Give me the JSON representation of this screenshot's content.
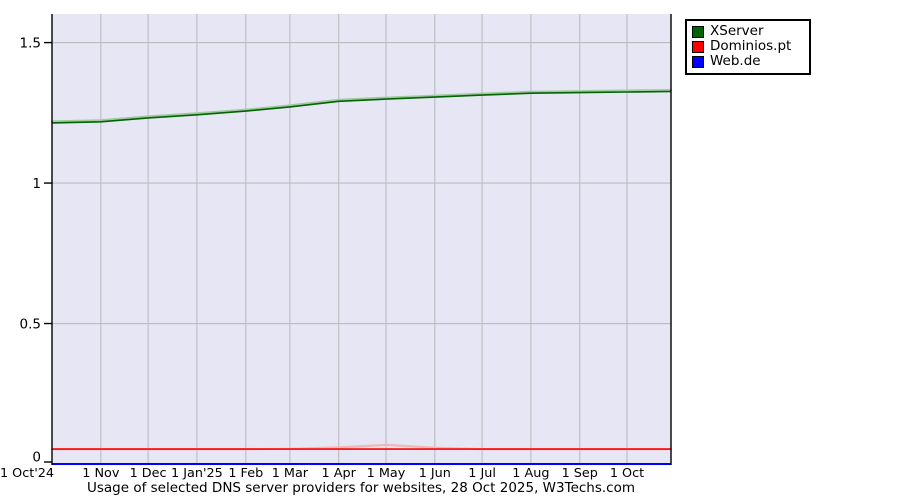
{
  "title": "Usage of selected DNS server providers for websites, 28 Oct 2025, W3Techs.com",
  "legend": {
    "entries": [
      "XServer",
      "Dominios.pt",
      "Web.de"
    ]
  },
  "chart_data": {
    "type": "line",
    "title": "Usage of selected DNS server providers for websites, 28 Oct 2025, W3Techs.com",
    "xlabel": "",
    "ylabel": "",
    "x_tick_labels": [
      "1 Oct'24",
      "1 Nov",
      "1 Dec",
      "1 Jan'25",
      "1 Feb",
      "1 Mar",
      "1 Apr",
      "1 May",
      "1 Jun",
      "1 Jul",
      "1 Aug",
      "1 Sep",
      "1 Oct"
    ],
    "x_tick_days": [
      0,
      31,
      61,
      92,
      123,
      151,
      182,
      212,
      243,
      273,
      304,
      335,
      365
    ],
    "x_range_days": [
      0,
      393
    ],
    "y_tick_labels": [
      "0",
      "0.5",
      "1",
      "1.5"
    ],
    "y_ticks": [
      0,
      0.5,
      1,
      1.5
    ],
    "ylim": [
      0,
      1.6
    ],
    "grid": true,
    "legend_position": "top-right",
    "plot_bg": "#E6E6F5",
    "grid_color": "#BCBCC0",
    "axis_color": "#000000",
    "series": [
      {
        "name": "XServer",
        "color": "#006400",
        "soft_color": "#9FC99F",
        "x_days": [
          0,
          31,
          61,
          92,
          123,
          151,
          182,
          212,
          243,
          273,
          304,
          335,
          365,
          393
        ],
        "values": [
          1.214,
          1.218,
          1.232,
          1.243,
          1.256,
          1.271,
          1.291,
          1.299,
          1.306,
          1.313,
          1.32,
          1.322,
          1.324,
          1.326
        ],
        "soft_values": [
          1.219,
          1.223,
          1.237,
          1.248,
          1.261,
          1.276,
          1.296,
          1.304,
          1.311,
          1.318,
          1.325,
          1.327,
          1.329,
          1.331
        ]
      },
      {
        "name": "Dominios.pt",
        "color": "#FF0000",
        "soft_color": "#F2B8B8",
        "x_days": [
          0,
          31,
          61,
          92,
          123,
          151,
          182,
          212,
          243,
          273,
          304,
          335,
          365,
          393
        ],
        "values": [
          0.053,
          0.053,
          0.053,
          0.053,
          0.053,
          0.053,
          0.053,
          0.053,
          0.053,
          0.053,
          0.053,
          0.053,
          0.053,
          0.053
        ],
        "soft_values": [
          0.053,
          0.053,
          0.053,
          0.053,
          0.053,
          0.054,
          0.059,
          0.068,
          0.058,
          0.053,
          0.053,
          0.053,
          0.053,
          0.053
        ]
      },
      {
        "name": "Web.de",
        "color": "#0000FF",
        "x_days": [
          0,
          31,
          61,
          92,
          123,
          151,
          182,
          212,
          243,
          273,
          304,
          335,
          365,
          393
        ],
        "values": [
          0,
          0,
          0,
          0,
          0,
          0,
          0,
          0,
          0,
          0,
          0,
          0,
          0,
          0
        ]
      }
    ]
  }
}
